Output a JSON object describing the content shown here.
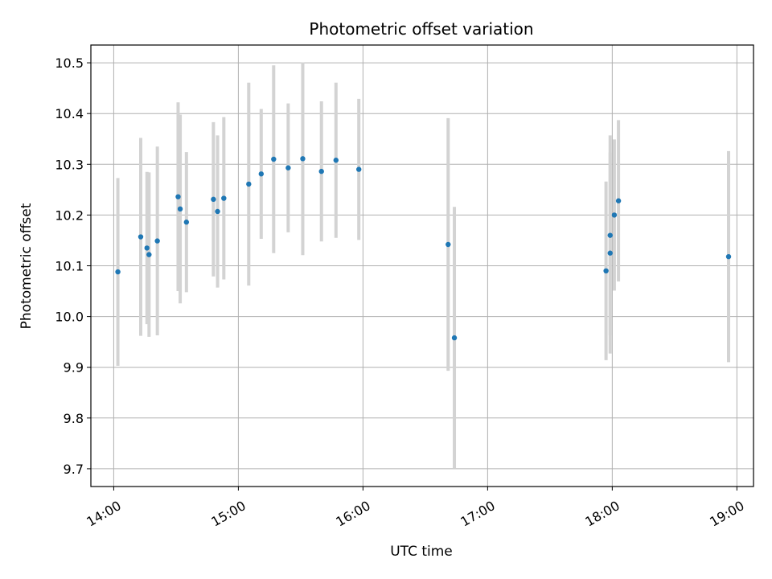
{
  "chart_data": {
    "type": "scatter",
    "title": "Photometric offset variation",
    "xlabel": "UTC time",
    "ylabel": "Photometric offset",
    "xlim": [
      "13:49",
      "19:08"
    ],
    "ylim": [
      9.665,
      10.535
    ],
    "xticks": [
      "14:00",
      "15:00",
      "16:00",
      "17:00",
      "18:00",
      "19:00"
    ],
    "yticks": [
      9.7,
      9.8,
      9.9,
      10.0,
      10.1,
      10.2,
      10.3,
      10.4,
      10.5
    ],
    "grid": true,
    "errorbar_color": "#d3d3d3",
    "point_color": "#1f77b4",
    "points": [
      {
        "time": "14:02",
        "y": 10.088,
        "err": 0.185
      },
      {
        "time": "14:13",
        "y": 10.157,
        "err": 0.195
      },
      {
        "time": "14:16",
        "y": 10.135,
        "err": 0.15
      },
      {
        "time": "14:17",
        "y": 10.122,
        "err": 0.162
      },
      {
        "time": "14:21",
        "y": 10.149,
        "err": 0.186
      },
      {
        "time": "14:31",
        "y": 10.236,
        "err": 0.186
      },
      {
        "time": "14:32",
        "y": 10.212,
        "err": 0.186
      },
      {
        "time": "14:35",
        "y": 10.186,
        "err": 0.138
      },
      {
        "time": "14:48",
        "y": 10.231,
        "err": 0.152
      },
      {
        "time": "14:50",
        "y": 10.207,
        "err": 0.15
      },
      {
        "time": "14:53",
        "y": 10.233,
        "err": 0.16
      },
      {
        "time": "15:05",
        "y": 10.261,
        "err": 0.2
      },
      {
        "time": "15:11",
        "y": 10.281,
        "err": 0.128
      },
      {
        "time": "15:17",
        "y": 10.31,
        "err": 0.185
      },
      {
        "time": "15:24",
        "y": 10.293,
        "err": 0.127
      },
      {
        "time": "15:31",
        "y": 10.311,
        "err": 0.19
      },
      {
        "time": "15:40",
        "y": 10.286,
        "err": 0.138
      },
      {
        "time": "15:47",
        "y": 10.308,
        "err": 0.153
      },
      {
        "time": "15:58",
        "y": 10.29,
        "err": 0.139
      },
      {
        "time": "16:41",
        "y": 10.142,
        "err": 0.249
      },
      {
        "time": "16:44",
        "y": 9.958,
        "err": 0.258
      },
      {
        "time": "17:57",
        "y": 10.09,
        "err": 0.176
      },
      {
        "time": "17:59",
        "y": 10.16,
        "err": 0.197
      },
      {
        "time": "17:59",
        "y": 10.125,
        "err": 0.198
      },
      {
        "time": "18:01",
        "y": 10.2,
        "err": 0.149
      },
      {
        "time": "18:03",
        "y": 10.228,
        "err": 0.159
      },
      {
        "time": "18:56",
        "y": 10.118,
        "err": 0.208
      }
    ]
  }
}
